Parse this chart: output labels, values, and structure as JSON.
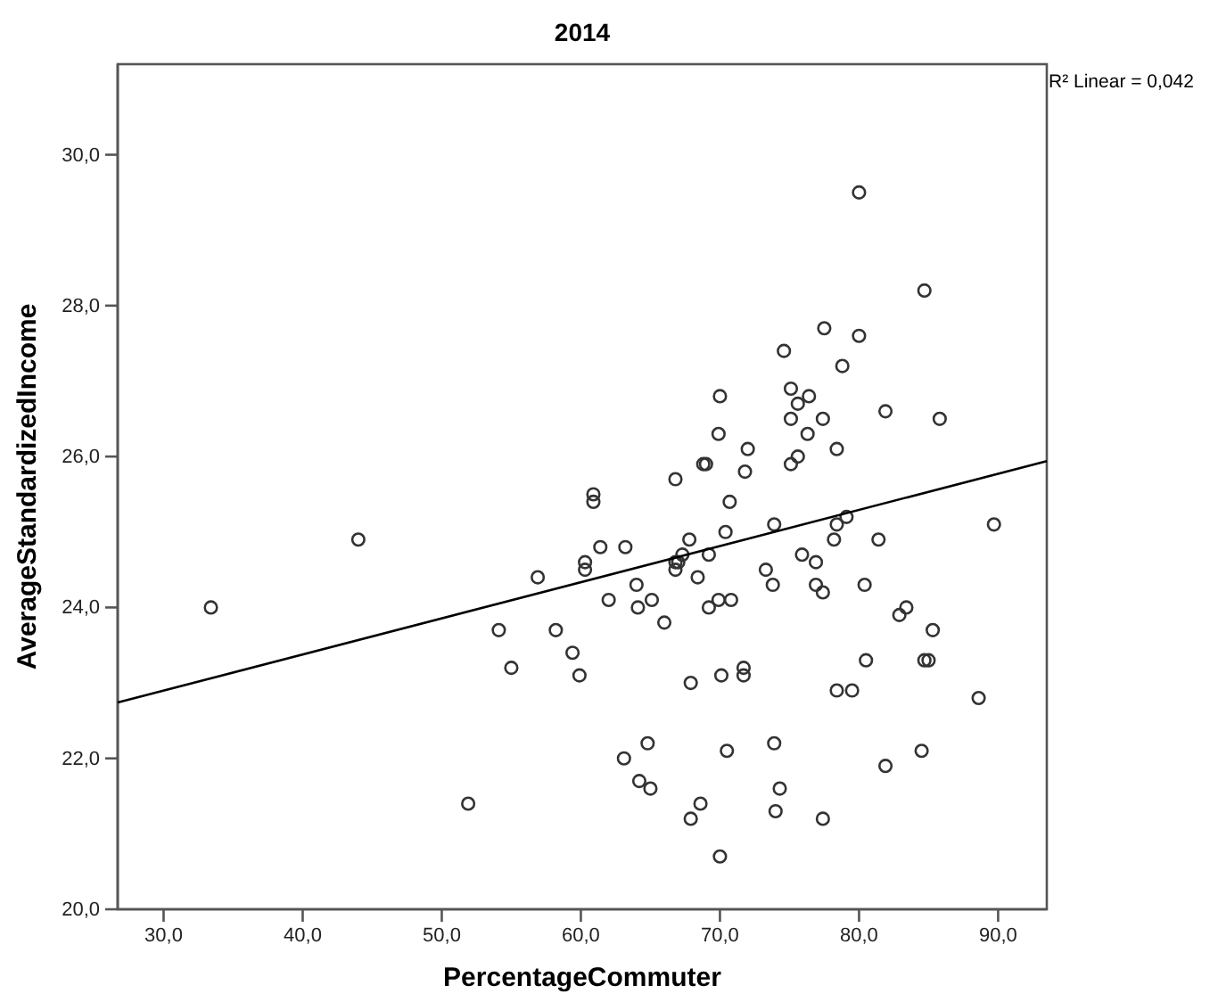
{
  "chart_data": {
    "type": "scatter",
    "title": "2014",
    "xlabel": "PercentageCommuter",
    "ylabel": "AverageStandardizedIncome",
    "annotations": [
      "R² Linear = 0,042"
    ],
    "xlim": [
      26.7,
      93.5
    ],
    "ylim": [
      20,
      31.2
    ],
    "xticks": [
      {
        "value": 30,
        "label": "30,0"
      },
      {
        "value": 40,
        "label": "40,0"
      },
      {
        "value": 50,
        "label": "50,0"
      },
      {
        "value": 60,
        "label": "60,0"
      },
      {
        "value": 70,
        "label": "70,0"
      },
      {
        "value": 80,
        "label": "80,0"
      },
      {
        "value": 90,
        "label": "90,0"
      }
    ],
    "yticks": [
      {
        "value": 20,
        "label": "20,0"
      },
      {
        "value": 22,
        "label": "22,0"
      },
      {
        "value": 24,
        "label": "24,0"
      },
      {
        "value": 26,
        "label": "26,0"
      },
      {
        "value": 28,
        "label": "28,0"
      },
      {
        "value": 30,
        "label": "30,0"
      }
    ],
    "grid": false,
    "series": [
      {
        "marker": "circle",
        "color": "#333333",
        "x": [
          33.4,
          44.0,
          51.9,
          54.1,
          55.0,
          56.9,
          58.2,
          59.4,
          59.9,
          60.3,
          60.3,
          60.9,
          60.9,
          61.4,
          62.0,
          63.1,
          63.2,
          64.0,
          64.1,
          64.2,
          64.8,
          65.0,
          65.1,
          66.0,
          66.8,
          66.8,
          66.8,
          67.0,
          67.3,
          67.8,
          67.9,
          67.9,
          68.4,
          68.6,
          68.8,
          69.0,
          69.2,
          69.2,
          69.9,
          69.9,
          70.0,
          70.0,
          70.1,
          70.4,
          70.5,
          70.7,
          70.8,
          71.7,
          71.7,
          71.8,
          72.0,
          73.3,
          73.8,
          73.9,
          73.9,
          74.0,
          74.3,
          74.6,
          75.1,
          75.1,
          75.1,
          75.6,
          75.6,
          75.9,
          76.3,
          76.4,
          76.9,
          76.9,
          77.4,
          77.4,
          77.4,
          77.5,
          78.2,
          78.4,
          78.4,
          78.4,
          78.8,
          79.1,
          79.5,
          80.0,
          80.0,
          80.4,
          80.5,
          81.4,
          81.9,
          81.9,
          82.9,
          83.4,
          84.5,
          84.7,
          84.7,
          85.0,
          85.3,
          85.8,
          88.6,
          89.7
        ],
        "values": [
          24.0,
          24.9,
          21.4,
          23.7,
          23.2,
          24.4,
          23.7,
          23.4,
          23.1,
          24.6,
          24.5,
          25.5,
          25.4,
          24.8,
          24.1,
          22.0,
          24.8,
          24.3,
          24.0,
          21.7,
          22.2,
          21.6,
          24.1,
          23.8,
          25.7,
          24.6,
          24.5,
          24.6,
          24.7,
          24.9,
          23.0,
          21.2,
          24.4,
          21.4,
          25.9,
          25.9,
          24.7,
          24.0,
          26.3,
          24.1,
          26.8,
          20.7,
          23.1,
          25.0,
          22.1,
          25.4,
          24.1,
          23.2,
          23.1,
          25.8,
          26.1,
          24.5,
          24.3,
          25.1,
          22.2,
          21.3,
          21.6,
          27.4,
          26.9,
          26.5,
          25.9,
          26.7,
          26.0,
          24.7,
          26.3,
          26.8,
          24.6,
          24.3,
          26.5,
          24.2,
          21.2,
          27.7,
          24.9,
          26.1,
          22.9,
          25.1,
          27.2,
          25.2,
          22.9,
          29.5,
          27.6,
          24.3,
          23.3,
          24.9,
          26.6,
          21.9,
          23.9,
          24.0,
          22.1,
          28.2,
          23.3,
          23.3,
          23.7,
          26.5,
          22.8,
          25.1
        ]
      },
      {
        "type": "line",
        "marker": "none",
        "line_style": "solid",
        "color": "#000000",
        "x": [
          26.7,
          93.5
        ],
        "values": [
          22.74,
          25.94
        ]
      }
    ]
  }
}
